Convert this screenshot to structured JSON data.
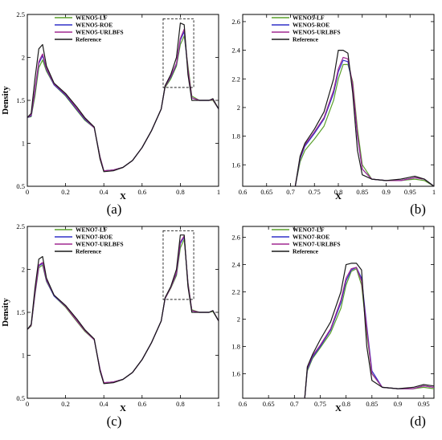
{
  "chart_data": [
    {
      "type": "line",
      "caption": "(a)",
      "xlabel": "X",
      "ylabel": "Density",
      "xlim": [
        0,
        1
      ],
      "ylim": [
        0.5,
        2.5
      ],
      "xticks": [
        "0",
        "0.2",
        "0.4",
        "0.6",
        "0.8",
        "1"
      ],
      "xtick_values": [
        0,
        0.2,
        0.4,
        0.6,
        0.8,
        1
      ],
      "yticks": [
        "0.5",
        "1",
        "1.5",
        "2",
        "2.5"
      ],
      "ytick_values": [
        0.5,
        1,
        1.5,
        2,
        2.5
      ],
      "legend_position": "top-left",
      "zoom_box": {
        "x": [
          0.71,
          0.87
        ],
        "y": [
          1.65,
          2.45
        ]
      },
      "series": [
        {
          "name": "WENO5-LF",
          "color": "#5aa02c",
          "x": [
            0,
            0.02,
            0.04,
            0.06,
            0.08,
            0.1,
            0.14,
            0.2,
            0.26,
            0.3,
            0.35,
            0.38,
            0.4,
            0.45,
            0.5,
            0.55,
            0.6,
            0.65,
            0.7,
            0.72,
            0.75,
            0.78,
            0.8,
            0.82,
            0.84,
            0.86,
            0.9,
            0.95,
            0.97,
            1.0
          ],
          "y": [
            1.3,
            1.31,
            1.55,
            1.88,
            1.97,
            1.84,
            1.68,
            1.55,
            1.38,
            1.27,
            1.18,
            0.85,
            0.68,
            0.69,
            0.72,
            0.8,
            0.95,
            1.15,
            1.4,
            1.65,
            1.75,
            1.9,
            2.15,
            2.25,
            1.9,
            1.55,
            1.5,
            1.5,
            1.5,
            1.4
          ]
        },
        {
          "name": "WENO5-ROE",
          "color": "#3030c8",
          "x": [
            0,
            0.02,
            0.04,
            0.06,
            0.08,
            0.1,
            0.14,
            0.2,
            0.26,
            0.3,
            0.35,
            0.38,
            0.4,
            0.45,
            0.5,
            0.55,
            0.6,
            0.65,
            0.7,
            0.72,
            0.75,
            0.78,
            0.8,
            0.82,
            0.84,
            0.86,
            0.9,
            0.95,
            0.97,
            1.0
          ],
          "y": [
            1.3,
            1.32,
            1.6,
            1.93,
            2.02,
            1.86,
            1.68,
            1.56,
            1.39,
            1.28,
            1.18,
            0.84,
            0.68,
            0.69,
            0.72,
            0.8,
            0.95,
            1.15,
            1.4,
            1.66,
            1.77,
            1.92,
            2.2,
            2.3,
            1.85,
            1.53,
            1.5,
            1.5,
            1.51,
            1.4
          ]
        },
        {
          "name": "WENO5-URLBFS",
          "color": "#a02890",
          "x": [
            0,
            0.02,
            0.04,
            0.06,
            0.08,
            0.1,
            0.14,
            0.2,
            0.26,
            0.3,
            0.35,
            0.38,
            0.4,
            0.45,
            0.5,
            0.55,
            0.6,
            0.65,
            0.7,
            0.72,
            0.75,
            0.78,
            0.8,
            0.82,
            0.84,
            0.86,
            0.9,
            0.95,
            0.97,
            1.0
          ],
          "y": [
            1.3,
            1.33,
            1.62,
            1.95,
            2.04,
            1.87,
            1.69,
            1.57,
            1.4,
            1.29,
            1.18,
            0.84,
            0.68,
            0.69,
            0.72,
            0.8,
            0.95,
            1.15,
            1.4,
            1.66,
            1.78,
            1.93,
            2.22,
            2.33,
            1.86,
            1.53,
            1.5,
            1.5,
            1.51,
            1.4
          ]
        },
        {
          "name": "Reference",
          "color": "#1a1a1a",
          "x": [
            0,
            0.02,
            0.04,
            0.06,
            0.08,
            0.1,
            0.14,
            0.2,
            0.26,
            0.3,
            0.35,
            0.38,
            0.4,
            0.45,
            0.5,
            0.55,
            0.6,
            0.65,
            0.7,
            0.72,
            0.75,
            0.78,
            0.8,
            0.82,
            0.84,
            0.86,
            0.9,
            0.95,
            0.97,
            1.0
          ],
          "y": [
            1.3,
            1.35,
            1.75,
            2.1,
            2.15,
            1.9,
            1.7,
            1.58,
            1.42,
            1.3,
            1.19,
            0.82,
            0.67,
            0.68,
            0.72,
            0.8,
            0.95,
            1.15,
            1.4,
            1.67,
            1.8,
            2.0,
            2.4,
            2.38,
            1.8,
            1.5,
            1.5,
            1.5,
            1.52,
            1.4
          ]
        }
      ]
    },
    {
      "type": "line",
      "caption": "(b)",
      "xlabel": "X",
      "ylabel": "",
      "xlim": [
        0.6,
        1
      ],
      "ylim": [
        1.45,
        2.65
      ],
      "xticks": [
        "0.6",
        "0.65",
        "0.7",
        "0.75",
        "0.8",
        "0.85",
        "0.9",
        "0.95",
        "1"
      ],
      "xtick_values": [
        0.6,
        0.65,
        0.7,
        0.75,
        0.8,
        0.85,
        0.9,
        0.95,
        1
      ],
      "yticks": [
        "1.6",
        "1.8",
        "2",
        "2.2",
        "2.4",
        "2.6"
      ],
      "ytick_values": [
        1.6,
        1.8,
        2,
        2.2,
        2.4,
        2.6
      ],
      "legend_position": "top-left",
      "series": [
        {
          "name": "WENO5-LF",
          "color": "#5aa02c",
          "x": [
            0.71,
            0.72,
            0.73,
            0.75,
            0.77,
            0.79,
            0.8,
            0.81,
            0.82,
            0.83,
            0.84,
            0.85,
            0.87,
            0.9,
            0.93,
            0.96,
            0.98,
            1.0
          ],
          "y": [
            1.45,
            1.62,
            1.7,
            1.78,
            1.87,
            2.05,
            2.2,
            2.3,
            2.3,
            2.18,
            1.85,
            1.6,
            1.5,
            1.49,
            1.49,
            1.5,
            1.49,
            1.45
          ]
        },
        {
          "name": "WENO5-ROE",
          "color": "#3030c8",
          "x": [
            0.71,
            0.72,
            0.73,
            0.75,
            0.77,
            0.79,
            0.8,
            0.81,
            0.82,
            0.83,
            0.84,
            0.85,
            0.87,
            0.9,
            0.93,
            0.96,
            0.98,
            1.0
          ],
          "y": [
            1.45,
            1.64,
            1.73,
            1.82,
            1.92,
            2.1,
            2.25,
            2.33,
            2.32,
            2.15,
            1.8,
            1.57,
            1.5,
            1.49,
            1.49,
            1.51,
            1.5,
            1.45
          ]
        },
        {
          "name": "WENO5-URLBFS",
          "color": "#a02890",
          "x": [
            0.71,
            0.72,
            0.73,
            0.75,
            0.77,
            0.79,
            0.8,
            0.81,
            0.82,
            0.83,
            0.84,
            0.85,
            0.87,
            0.9,
            0.93,
            0.96,
            0.98,
            1.0
          ],
          "y": [
            1.45,
            1.65,
            1.74,
            1.83,
            1.93,
            2.12,
            2.27,
            2.35,
            2.34,
            2.16,
            1.81,
            1.57,
            1.5,
            1.49,
            1.49,
            1.51,
            1.5,
            1.45
          ]
        },
        {
          "name": "Reference",
          "color": "#1a1a1a",
          "x": [
            0.71,
            0.72,
            0.73,
            0.75,
            0.77,
            0.79,
            0.8,
            0.81,
            0.82,
            0.83,
            0.84,
            0.85,
            0.87,
            0.9,
            0.93,
            0.96,
            0.98,
            1.0
          ],
          "y": [
            1.45,
            1.66,
            1.75,
            1.85,
            1.97,
            2.2,
            2.4,
            2.4,
            2.38,
            2.1,
            1.7,
            1.53,
            1.5,
            1.49,
            1.5,
            1.52,
            1.5,
            1.45
          ]
        }
      ]
    },
    {
      "type": "line",
      "caption": "(c)",
      "xlabel": "X",
      "ylabel": "Density",
      "xlim": [
        0,
        1
      ],
      "ylim": [
        0.5,
        2.5
      ],
      "xticks": [
        "0",
        "0.2",
        "0.4",
        "0.6",
        "0.8",
        "1"
      ],
      "xtick_values": [
        0,
        0.2,
        0.4,
        0.6,
        0.8,
        1
      ],
      "yticks": [
        "0.5",
        "1",
        "1.5",
        "2",
        "2.5"
      ],
      "ytick_values": [
        0.5,
        1,
        1.5,
        2,
        2.5
      ],
      "legend_position": "top-left",
      "zoom_box": {
        "x": [
          0.71,
          0.87
        ],
        "y": [
          1.65,
          2.45
        ]
      },
      "series": [
        {
          "name": "WENO7-LF",
          "color": "#5aa02c",
          "x": [
            0,
            0.02,
            0.04,
            0.06,
            0.08,
            0.1,
            0.14,
            0.2,
            0.26,
            0.3,
            0.35,
            0.38,
            0.4,
            0.45,
            0.5,
            0.55,
            0.6,
            0.65,
            0.7,
            0.72,
            0.75,
            0.78,
            0.8,
            0.82,
            0.84,
            0.86,
            0.9,
            0.95,
            0.97,
            1.0
          ],
          "y": [
            1.3,
            1.34,
            1.7,
            2.02,
            2.05,
            1.86,
            1.69,
            1.56,
            1.39,
            1.28,
            1.18,
            0.84,
            0.68,
            0.69,
            0.72,
            0.8,
            0.95,
            1.15,
            1.4,
            1.66,
            1.78,
            1.93,
            2.25,
            2.35,
            1.85,
            1.53,
            1.5,
            1.5,
            1.51,
            1.4
          ]
        },
        {
          "name": "WENO7-ROE",
          "color": "#3030c8",
          "x": [
            0,
            0.02,
            0.04,
            0.06,
            0.08,
            0.1,
            0.14,
            0.2,
            0.26,
            0.3,
            0.35,
            0.38,
            0.4,
            0.45,
            0.5,
            0.55,
            0.6,
            0.65,
            0.7,
            0.72,
            0.75,
            0.78,
            0.8,
            0.82,
            0.84,
            0.86,
            0.9,
            0.95,
            0.97,
            1.0
          ],
          "y": [
            1.3,
            1.35,
            1.72,
            2.04,
            2.07,
            1.87,
            1.69,
            1.57,
            1.4,
            1.29,
            1.18,
            0.84,
            0.68,
            0.69,
            0.72,
            0.8,
            0.95,
            1.15,
            1.4,
            1.66,
            1.79,
            1.95,
            2.3,
            2.38,
            1.83,
            1.52,
            1.5,
            1.5,
            1.52,
            1.4
          ]
        },
        {
          "name": "WENO7-URLBFS",
          "color": "#a02890",
          "x": [
            0,
            0.02,
            0.04,
            0.06,
            0.08,
            0.1,
            0.14,
            0.2,
            0.26,
            0.3,
            0.35,
            0.38,
            0.4,
            0.45,
            0.5,
            0.55,
            0.6,
            0.65,
            0.7,
            0.72,
            0.75,
            0.78,
            0.8,
            0.82,
            0.84,
            0.86,
            0.9,
            0.95,
            0.97,
            1.0
          ],
          "y": [
            1.3,
            1.35,
            1.73,
            2.05,
            2.08,
            1.88,
            1.7,
            1.57,
            1.4,
            1.29,
            1.18,
            0.84,
            0.68,
            0.69,
            0.72,
            0.8,
            0.95,
            1.15,
            1.4,
            1.66,
            1.79,
            1.96,
            2.32,
            2.39,
            1.83,
            1.52,
            1.5,
            1.5,
            1.52,
            1.4
          ]
        },
        {
          "name": "Reference",
          "color": "#1a1a1a",
          "x": [
            0,
            0.02,
            0.04,
            0.06,
            0.08,
            0.1,
            0.14,
            0.2,
            0.26,
            0.3,
            0.35,
            0.38,
            0.4,
            0.45,
            0.5,
            0.55,
            0.6,
            0.65,
            0.7,
            0.72,
            0.75,
            0.78,
            0.8,
            0.82,
            0.84,
            0.86,
            0.9,
            0.95,
            0.97,
            1.0
          ],
          "y": [
            1.3,
            1.36,
            1.78,
            2.12,
            2.15,
            1.9,
            1.7,
            1.58,
            1.42,
            1.3,
            1.19,
            0.82,
            0.67,
            0.68,
            0.72,
            0.8,
            0.95,
            1.15,
            1.4,
            1.67,
            1.8,
            2.0,
            2.4,
            2.4,
            1.8,
            1.5,
            1.5,
            1.5,
            1.52,
            1.4
          ]
        }
      ]
    },
    {
      "type": "line",
      "caption": "(d)",
      "xlabel": "X",
      "ylabel": "",
      "xlim": [
        0.6,
        0.97
      ],
      "ylim": [
        1.42,
        2.68
      ],
      "xticks": [
        "0.6",
        "0.65",
        "0.7",
        "0.75",
        "0.8",
        "0.85",
        "0.9",
        "0.95"
      ],
      "xtick_values": [
        0.6,
        0.65,
        0.7,
        0.75,
        0.8,
        0.85,
        0.9,
        0.95
      ],
      "yticks": [
        "1.6",
        "1.8",
        "2",
        "2.2",
        "2.4",
        "2.6"
      ],
      "ytick_values": [
        1.6,
        1.8,
        2,
        2.2,
        2.4,
        2.6
      ],
      "legend_position": "top-left",
      "series": [
        {
          "name": "WENO7-LF",
          "color": "#5aa02c",
          "x": [
            0.72,
            0.725,
            0.735,
            0.75,
            0.77,
            0.79,
            0.8,
            0.81,
            0.82,
            0.83,
            0.84,
            0.85,
            0.87,
            0.9,
            0.93,
            0.95,
            0.97
          ],
          "y": [
            1.42,
            1.62,
            1.71,
            1.79,
            1.9,
            2.08,
            2.25,
            2.35,
            2.37,
            2.25,
            1.9,
            1.6,
            1.5,
            1.49,
            1.49,
            1.5,
            1.49
          ]
        },
        {
          "name": "WENO7-ROE",
          "color": "#3030c8",
          "x": [
            0.72,
            0.725,
            0.735,
            0.75,
            0.77,
            0.79,
            0.8,
            0.81,
            0.82,
            0.83,
            0.84,
            0.85,
            0.87,
            0.9,
            0.93,
            0.95,
            0.97
          ],
          "y": [
            1.42,
            1.63,
            1.72,
            1.8,
            1.92,
            2.12,
            2.28,
            2.36,
            2.38,
            2.3,
            1.95,
            1.62,
            1.5,
            1.49,
            1.49,
            1.51,
            1.5
          ]
        },
        {
          "name": "WENO7-URLBFS",
          "color": "#a02890",
          "x": [
            0.72,
            0.725,
            0.735,
            0.75,
            0.77,
            0.79,
            0.8,
            0.81,
            0.82,
            0.83,
            0.84,
            0.85,
            0.87,
            0.9,
            0.93,
            0.95,
            0.97
          ],
          "y": [
            1.42,
            1.64,
            1.73,
            1.81,
            1.93,
            2.14,
            2.3,
            2.37,
            2.38,
            2.28,
            1.93,
            1.6,
            1.5,
            1.49,
            1.49,
            1.51,
            1.5
          ]
        },
        {
          "name": "Reference",
          "color": "#1a1a1a",
          "x": [
            0.72,
            0.725,
            0.735,
            0.75,
            0.77,
            0.79,
            0.8,
            0.81,
            0.82,
            0.83,
            0.84,
            0.85,
            0.87,
            0.9,
            0.93,
            0.95,
            0.97
          ],
          "y": [
            1.42,
            1.65,
            1.74,
            1.85,
            1.98,
            2.2,
            2.4,
            2.41,
            2.41,
            2.36,
            1.8,
            1.55,
            1.5,
            1.49,
            1.5,
            1.52,
            1.51
          ]
        }
      ]
    }
  ]
}
